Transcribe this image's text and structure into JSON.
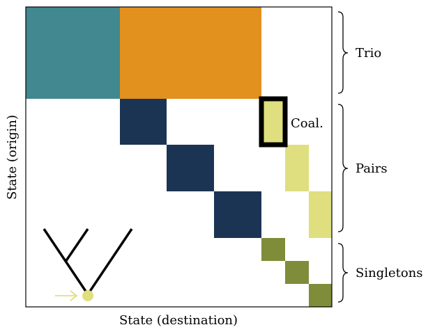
{
  "labels": {
    "xlabel": "State (destination)",
    "ylabel": "State (origin)",
    "coal": "Coal."
  },
  "groups": {
    "trio": "Trio",
    "pairs": "Pairs",
    "singletons": "Singletons"
  },
  "colors": {
    "trio_teal": "#428890",
    "trio_orange": "#e2901e",
    "pairs_navy": "#1c3454",
    "coal_yellow": "#dfdf7f",
    "singleton_olive": "#7f8c3a",
    "arrow_yellow": "#dfdf7f"
  }
}
